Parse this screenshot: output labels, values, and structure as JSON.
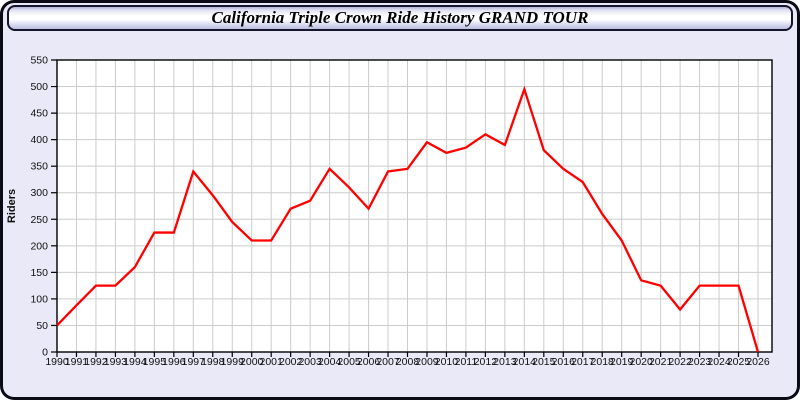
{
  "panel": {
    "background": "#e9e9f7",
    "border_color": "#0b0b16"
  },
  "header": {
    "title": "California Triple Crown Ride History GRAND TOUR"
  },
  "chart_data": {
    "type": "line",
    "title": "California Triple Crown Ride History GRAND TOUR",
    "xlabel": "",
    "ylabel": "Riders",
    "categories": [
      "1990",
      "1991",
      "1992",
      "1993",
      "1994",
      "1995",
      "1996",
      "1997",
      "1998",
      "1999",
      "2000",
      "2001",
      "2002",
      "2003",
      "2004",
      "2005",
      "2006",
      "2007",
      "2008",
      "2009",
      "2010",
      "2011",
      "2012",
      "2013",
      "2014",
      "2015",
      "2016",
      "2017",
      "2018",
      "2019",
      "2020",
      "2021",
      "2022",
      "2023",
      "2024",
      "2025",
      "2026"
    ],
    "series": [
      {
        "name": "Riders",
        "values": [
          50,
          88,
          125,
          125,
          160,
          225,
          225,
          340,
          295,
          245,
          210,
          210,
          270,
          285,
          345,
          310,
          270,
          340,
          345,
          395,
          375,
          385,
          410,
          390,
          495,
          380,
          345,
          320,
          260,
          210,
          135,
          125,
          80,
          125,
          125,
          125,
          0
        ]
      }
    ],
    "ylim": [
      0,
      550
    ],
    "ytick_step": 50,
    "y_ticks": [
      0,
      50,
      100,
      150,
      200,
      250,
      300,
      350,
      400,
      450,
      500,
      550
    ],
    "grid": true,
    "legend_position": "none",
    "line_color": "#ff0000",
    "grid_color": "#cccccc",
    "axis_color": "#000000",
    "plot_background": "#ffffff"
  }
}
